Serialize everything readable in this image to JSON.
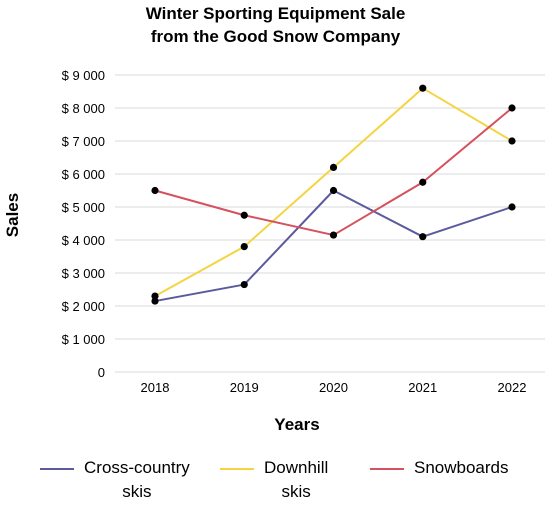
{
  "title_line1": "Winter Sporting Equipment Sale",
  "title_line2": "from the Good Snow Company",
  "chart_data": {
    "type": "line",
    "title": "Winter Sporting Equipment Sale from the Good Snow Company",
    "xlabel": "Years",
    "ylabel": "Sales",
    "categories": [
      "2018",
      "2019",
      "2020",
      "2021",
      "2022"
    ],
    "ylim": [
      0,
      9000
    ],
    "yticks": [
      0,
      1000,
      2000,
      3000,
      4000,
      5000,
      6000,
      7000,
      8000,
      9000
    ],
    "ytick_labels": [
      "0",
      "$ 1 000",
      "$ 2 000",
      "$ 3 000",
      "$ 4 000",
      "$ 5 000",
      "$ 6 000",
      "$ 7 000",
      "$ 8 000",
      "$ 9 000"
    ],
    "grid": "horizontal",
    "legend_position": "bottom",
    "series": [
      {
        "name": "Cross-country\nskis",
        "color": "#5b5a9c",
        "values": [
          2150,
          2650,
          5500,
          4100,
          5000
        ]
      },
      {
        "name": "Downhill\nskis",
        "color": "#f5d442",
        "values": [
          2300,
          3800,
          6200,
          8600,
          7000
        ]
      },
      {
        "name": "Snowboards",
        "color": "#d5515e",
        "values": [
          5500,
          4750,
          4150,
          5750,
          8000
        ]
      }
    ],
    "marker_color": "#000000",
    "grid_color": "#d9d9d9"
  }
}
